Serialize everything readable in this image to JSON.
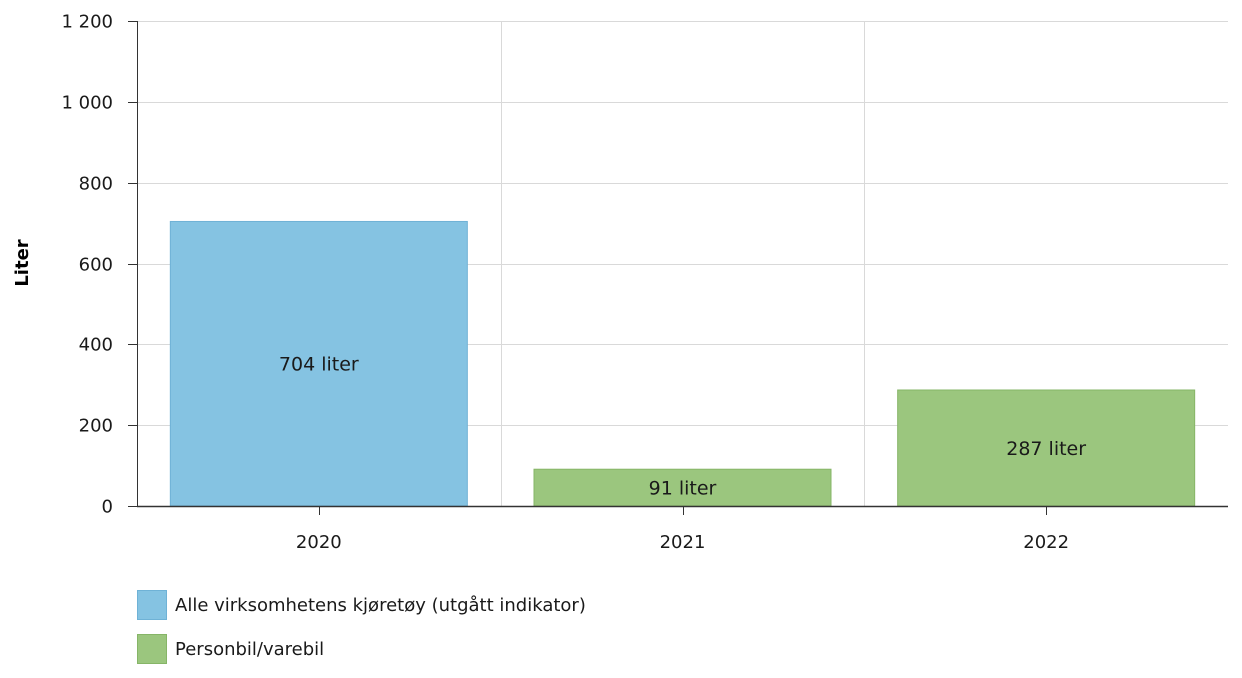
{
  "chart_data": {
    "type": "bar",
    "categories": [
      "2020",
      "2021",
      "2022"
    ],
    "values": [
      704,
      91,
      287
    ],
    "bar_series": [
      "Alle virksomhetens kjøretøy (utgått indikator)",
      "Personbil/varebil",
      "Personbil/varebil"
    ],
    "data_labels": [
      "704 liter",
      "91 liter",
      "287 liter"
    ],
    "ylabel": "Liter",
    "xlabel": "",
    "title": "",
    "ylim": [
      0,
      1200
    ],
    "yticks": [
      0,
      200,
      400,
      600,
      800,
      1000,
      1200
    ],
    "ytick_labels": [
      "0",
      "200",
      "400",
      "600",
      "800",
      "1 000",
      "1 200"
    ],
    "grid": true,
    "legend_position": "bottom-left",
    "series": [
      {
        "name": "Alle virksomhetens kjøretøy (utgått indikator)",
        "color": "#85c3e2",
        "border": "#6fb2d6"
      },
      {
        "name": "Personbil/varebil",
        "color": "#9bc67e",
        "border": "#86b567"
      }
    ]
  }
}
